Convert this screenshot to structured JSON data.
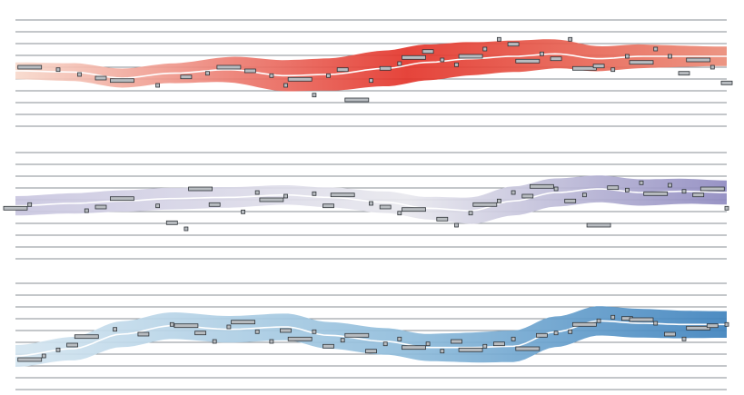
{
  "chart_data": {
    "type": "line",
    "title": "",
    "xlabel": "",
    "ylabel": "",
    "grid": true,
    "legend": "none",
    "panels": [
      {
        "name": "",
        "color_start": "#f7d9cc",
        "color_mid": "#e3342a",
        "color_end": "#eb8c78",
        "y_range": [
          0,
          9
        ],
        "center": [
          [
            0,
            4.2
          ],
          [
            0.08,
            4.3
          ],
          [
            0.15,
            4.8
          ],
          [
            0.22,
            4.4
          ],
          [
            0.3,
            4.1
          ],
          [
            0.38,
            4.6
          ],
          [
            0.44,
            4.5
          ],
          [
            0.52,
            4.0
          ],
          [
            0.58,
            3.5
          ],
          [
            0.64,
            3.2
          ],
          [
            0.7,
            3.0
          ],
          [
            0.76,
            2.8
          ],
          [
            0.82,
            3.2
          ],
          [
            0.88,
            3.0
          ],
          [
            0.94,
            3.0
          ],
          [
            1.0,
            3.0
          ]
        ],
        "band": [
          [
            0,
            0.7
          ],
          [
            0.2,
            0.8
          ],
          [
            0.4,
            1.3
          ],
          [
            0.55,
            1.5
          ],
          [
            0.7,
            1.3
          ],
          [
            0.85,
            1.0
          ],
          [
            1.0,
            0.8
          ]
        ],
        "samples": [
          [
            0.02,
            3.9
          ],
          [
            0.06,
            4.1
          ],
          [
            0.09,
            4.5
          ],
          [
            0.12,
            4.8
          ],
          [
            0.15,
            5.0
          ],
          [
            0.2,
            5.4
          ],
          [
            0.24,
            4.7
          ],
          [
            0.27,
            4.4
          ],
          [
            0.3,
            3.9
          ],
          [
            0.33,
            4.2
          ],
          [
            0.36,
            4.6
          ],
          [
            0.38,
            5.4
          ],
          [
            0.4,
            4.9
          ],
          [
            0.42,
            6.2
          ],
          [
            0.44,
            4.6
          ],
          [
            0.46,
            4.1
          ],
          [
            0.48,
            6.6
          ],
          [
            0.5,
            5.0
          ],
          [
            0.52,
            4.0
          ],
          [
            0.54,
            3.6
          ],
          [
            0.56,
            3.1
          ],
          [
            0.58,
            2.6
          ],
          [
            0.6,
            3.3
          ],
          [
            0.62,
            3.7
          ],
          [
            0.64,
            3.0
          ],
          [
            0.66,
            2.4
          ],
          [
            0.68,
            1.6
          ],
          [
            0.7,
            2.0
          ],
          [
            0.72,
            3.4
          ],
          [
            0.74,
            2.8
          ],
          [
            0.76,
            3.2
          ],
          [
            0.78,
            1.6
          ],
          [
            0.8,
            4.0
          ],
          [
            0.82,
            3.8
          ],
          [
            0.84,
            4.1
          ],
          [
            0.86,
            3.0
          ],
          [
            0.88,
            3.5
          ],
          [
            0.9,
            2.4
          ],
          [
            0.92,
            3.0
          ],
          [
            0.94,
            4.4
          ],
          [
            0.96,
            3.3
          ],
          [
            0.98,
            3.9
          ],
          [
            1.0,
            5.2
          ]
        ]
      },
      {
        "name": "",
        "color_start": "#c9c6e0",
        "color_mid": "#e8e8ee",
        "color_end": "#8f8ac0",
        "y_range": [
          0,
          9
        ],
        "center": [
          [
            0,
            4.4
          ],
          [
            0.08,
            4.2
          ],
          [
            0.15,
            4.0
          ],
          [
            0.22,
            3.8
          ],
          [
            0.3,
            3.7
          ],
          [
            0.38,
            3.5
          ],
          [
            0.44,
            3.7
          ],
          [
            0.52,
            4.1
          ],
          [
            0.58,
            4.6
          ],
          [
            0.64,
            4.8
          ],
          [
            0.7,
            4.0
          ],
          [
            0.76,
            3.3
          ],
          [
            0.82,
            3.0
          ],
          [
            0.88,
            3.3
          ],
          [
            0.94,
            3.2
          ],
          [
            1.0,
            3.3
          ]
        ],
        "band": [
          [
            0,
            0.8
          ],
          [
            0.2,
            0.9
          ],
          [
            0.4,
            0.8
          ],
          [
            0.55,
            0.9
          ],
          [
            0.7,
            1.2
          ],
          [
            0.85,
            1.1
          ],
          [
            1.0,
            1.0
          ]
        ],
        "samples": [
          [
            0.0,
            4.6
          ],
          [
            0.02,
            4.3
          ],
          [
            0.1,
            4.8
          ],
          [
            0.12,
            4.5
          ],
          [
            0.15,
            3.8
          ],
          [
            0.2,
            4.4
          ],
          [
            0.22,
            5.8
          ],
          [
            0.24,
            6.3
          ],
          [
            0.26,
            3.0
          ],
          [
            0.28,
            4.3
          ],
          [
            0.32,
            4.9
          ],
          [
            0.34,
            3.3
          ],
          [
            0.36,
            3.9
          ],
          [
            0.38,
            3.6
          ],
          [
            0.42,
            3.4
          ],
          [
            0.44,
            4.4
          ],
          [
            0.46,
            3.5
          ],
          [
            0.5,
            4.2
          ],
          [
            0.52,
            4.5
          ],
          [
            0.54,
            5.0
          ],
          [
            0.56,
            4.7
          ],
          [
            0.6,
            5.5
          ],
          [
            0.62,
            6.0
          ],
          [
            0.64,
            5.0
          ],
          [
            0.66,
            4.3
          ],
          [
            0.68,
            4.0
          ],
          [
            0.7,
            3.3
          ],
          [
            0.72,
            3.6
          ],
          [
            0.74,
            2.8
          ],
          [
            0.76,
            3.0
          ],
          [
            0.78,
            4.0
          ],
          [
            0.8,
            3.5
          ],
          [
            0.82,
            6.0
          ],
          [
            0.84,
            2.9
          ],
          [
            0.86,
            3.1
          ],
          [
            0.88,
            2.5
          ],
          [
            0.9,
            3.4
          ],
          [
            0.92,
            2.7
          ],
          [
            0.94,
            3.2
          ],
          [
            0.96,
            3.5
          ],
          [
            0.98,
            3.0
          ],
          [
            1.0,
            4.6
          ]
        ]
      },
      {
        "name": "",
        "color_start": "#d4e5f0",
        "color_mid": "#8fbcdb",
        "color_end": "#3e82bd",
        "y_range": [
          0,
          9
        ],
        "center": [
          [
            0,
            6.0
          ],
          [
            0.08,
            5.4
          ],
          [
            0.15,
            4.2
          ],
          [
            0.22,
            3.5
          ],
          [
            0.3,
            3.8
          ],
          [
            0.38,
            3.6
          ],
          [
            0.44,
            4.3
          ],
          [
            0.52,
            4.8
          ],
          [
            0.58,
            5.3
          ],
          [
            0.64,
            5.3
          ],
          [
            0.7,
            5.2
          ],
          [
            0.76,
            4.0
          ],
          [
            0.82,
            3.1
          ],
          [
            0.88,
            3.3
          ],
          [
            0.94,
            3.4
          ],
          [
            1.0,
            3.4
          ]
        ],
        "band": [
          [
            0,
            0.9
          ],
          [
            0.2,
            1.1
          ],
          [
            0.4,
            1.1
          ],
          [
            0.55,
            1.1
          ],
          [
            0.7,
            1.3
          ],
          [
            0.85,
            1.2
          ],
          [
            1.0,
            1.1
          ]
        ],
        "samples": [
          [
            0.02,
            6.3
          ],
          [
            0.04,
            6.0
          ],
          [
            0.06,
            5.5
          ],
          [
            0.08,
            5.1
          ],
          [
            0.1,
            4.4
          ],
          [
            0.14,
            3.8
          ],
          [
            0.18,
            4.2
          ],
          [
            0.22,
            3.4
          ],
          [
            0.24,
            3.5
          ],
          [
            0.26,
            4.1
          ],
          [
            0.28,
            4.8
          ],
          [
            0.3,
            3.6
          ],
          [
            0.32,
            3.2
          ],
          [
            0.34,
            4.0
          ],
          [
            0.36,
            4.8
          ],
          [
            0.38,
            3.9
          ],
          [
            0.4,
            4.6
          ],
          [
            0.42,
            4.0
          ],
          [
            0.44,
            5.2
          ],
          [
            0.46,
            4.7
          ],
          [
            0.48,
            4.3
          ],
          [
            0.5,
            5.6
          ],
          [
            0.52,
            5.0
          ],
          [
            0.54,
            4.6
          ],
          [
            0.56,
            5.3
          ],
          [
            0.58,
            5.0
          ],
          [
            0.6,
            5.6
          ],
          [
            0.62,
            4.8
          ],
          [
            0.64,
            5.5
          ],
          [
            0.66,
            5.2
          ],
          [
            0.68,
            5.0
          ],
          [
            0.7,
            4.6
          ],
          [
            0.72,
            5.4
          ],
          [
            0.74,
            4.3
          ],
          [
            0.76,
            4.1
          ],
          [
            0.78,
            4.0
          ],
          [
            0.8,
            3.4
          ],
          [
            0.82,
            3.1
          ],
          [
            0.84,
            2.8
          ],
          [
            0.86,
            2.9
          ],
          [
            0.88,
            3.0
          ],
          [
            0.9,
            3.3
          ],
          [
            0.92,
            4.2
          ],
          [
            0.94,
            4.6
          ],
          [
            0.96,
            3.7
          ],
          [
            0.98,
            3.5
          ],
          [
            1.0,
            3.4
          ]
        ]
      }
    ]
  }
}
